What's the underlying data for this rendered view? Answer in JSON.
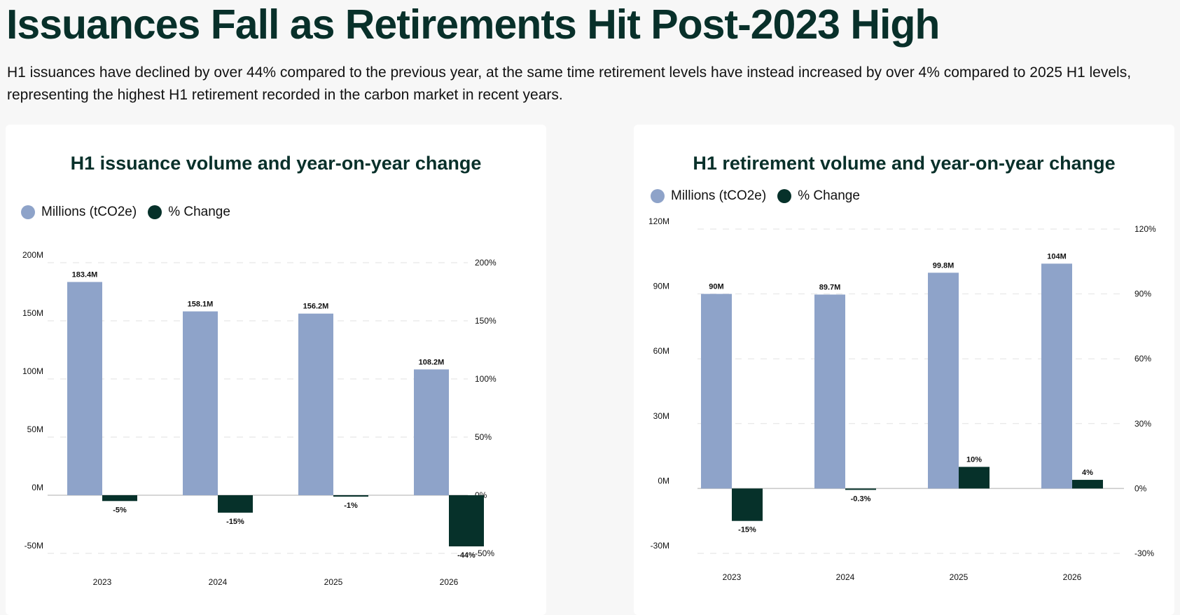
{
  "page": {
    "headline": "Issuances Fall as Retirements Hit Post-2023 High",
    "subtitle": "H1 issuances have declined by over 44% compared to the previous year, at the same time retirement levels have instead increased by over 4% compared to 2025 H1 levels, representing the highest H1 retirement recorded in the carbon market in recent years."
  },
  "colors": {
    "volume": "#8ea3c9",
    "change": "#06312a",
    "title": "#08302a"
  },
  "chart_data": [
    {
      "type": "bar",
      "title": "H1 issuance volume and year-on-year change",
      "legend": [
        "Millions (tCO2e)",
        "% Change"
      ],
      "legend_position": "top-left",
      "grid": true,
      "categories": [
        "2023",
        "2024",
        "2025",
        "2026"
      ],
      "series": [
        {
          "name": "Millions (tCO2e)",
          "axis": "left",
          "values": [
            183.4,
            158.1,
            156.2,
            108.2
          ],
          "labels": [
            "183.4M",
            "158.1M",
            "156.2M",
            "108.2M"
          ]
        },
        {
          "name": "% Change",
          "axis": "right",
          "values": [
            -5,
            -15,
            -1,
            -44
          ],
          "labels": [
            "-5%",
            "-15%",
            "-1%",
            "-44%"
          ]
        }
      ],
      "y_left": {
        "range": [
          -50,
          200
        ],
        "ticks": [
          -50,
          0,
          50,
          100,
          150,
          200
        ],
        "tick_labels": [
          "-50M",
          "0M",
          "50M",
          "100M",
          "150M",
          "200M"
        ]
      },
      "y_right": {
        "range": [
          -50,
          200
        ],
        "ticks": [
          -50,
          0,
          50,
          100,
          150,
          200
        ],
        "tick_labels": [
          "-50%",
          "0%",
          "50%",
          "100%",
          "150%",
          "200%"
        ]
      }
    },
    {
      "type": "bar",
      "title": "H1 retirement volume and year-on-year change",
      "legend": [
        "Millions (tCO2e)",
        "% Change"
      ],
      "legend_position": "top-left",
      "grid": true,
      "categories": [
        "2023",
        "2024",
        "2025",
        "2026"
      ],
      "series": [
        {
          "name": "Millions (tCO2e)",
          "axis": "left",
          "values": [
            90,
            89.7,
            99.8,
            104
          ],
          "labels": [
            "90M",
            "89.7M",
            "99.8M",
            "104M"
          ]
        },
        {
          "name": "% Change",
          "axis": "right",
          "values": [
            -15,
            -0.3,
            10,
            4
          ],
          "labels": [
            "-15%",
            "-0.3%",
            "10%",
            "4%"
          ]
        }
      ],
      "y_left": {
        "range": [
          -30,
          120
        ],
        "ticks": [
          -30,
          0,
          30,
          60,
          90,
          120
        ],
        "tick_labels": [
          "-30M",
          "0M",
          "30M",
          "60M",
          "90M",
          "120M"
        ]
      },
      "y_right": {
        "range": [
          -30,
          120
        ],
        "ticks": [
          -30,
          0,
          30,
          60,
          90,
          120
        ],
        "tick_labels": [
          "-30%",
          "0%",
          "30%",
          "60%",
          "90%",
          "120%"
        ]
      }
    }
  ]
}
